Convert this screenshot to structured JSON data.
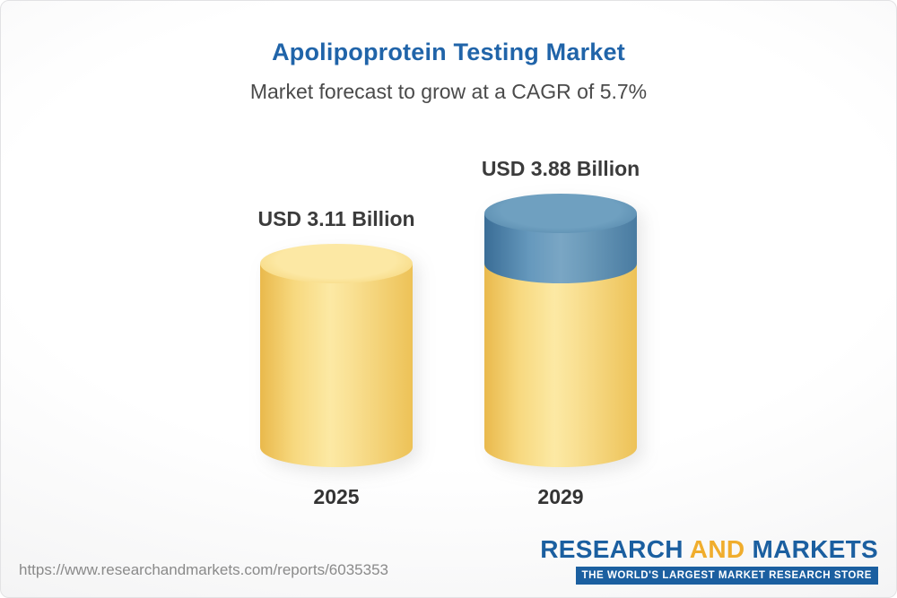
{
  "header": {
    "title": "Apolipoprotein Testing Market",
    "subtitle": "Market forecast to grow at a CAGR of 5.7%"
  },
  "chart_data": {
    "type": "bar",
    "title": "Apolipoprotein Testing Market",
    "subtitle": "Market forecast to grow at a CAGR of 5.7%",
    "categories": [
      "2025",
      "2029"
    ],
    "values": [
      3.11,
      3.88
    ],
    "value_labels": [
      "USD 3.11 Billion",
      "USD 3.88 Billion"
    ],
    "unit": "USD Billion",
    "cagr_pct": 5.7,
    "ylim": [
      0,
      3.88
    ],
    "legend": "none",
    "grid": false,
    "colors": {
      "base_segment": "#f6cf6b",
      "growth_segment": "#4f86ac"
    }
  },
  "footer": {
    "url": "https://www.researchandmarkets.com/reports/6035353",
    "logo": {
      "word_research": "RESEARCH",
      "word_and": "AND",
      "word_markets": "MARKETS",
      "tagline": "THE WORLD'S LARGEST MARKET RESEARCH STORE"
    }
  }
}
